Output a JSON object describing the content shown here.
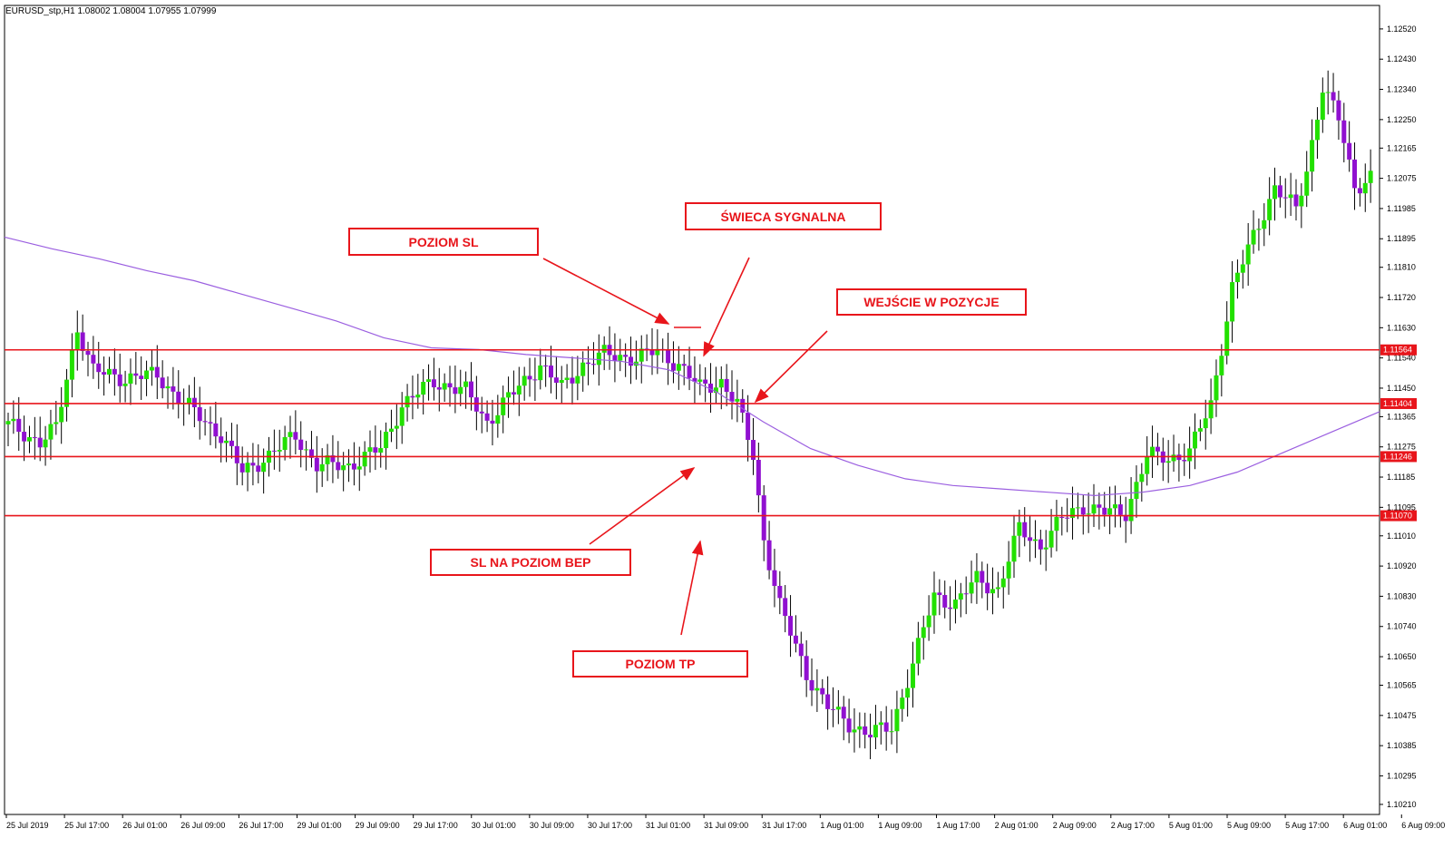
{
  "chart_data": {
    "type": "candlestick",
    "symbol_header": "EURUSD_stp,H1  1.08002 1.08004 1.07955 1.07999",
    "y_ticks": [
      "1.12520",
      "1.12430",
      "1.12340",
      "1.12250",
      "1.12165",
      "1.12075",
      "1.11985",
      "1.11895",
      "1.11810",
      "1.11720",
      "1.11630",
      "1.11540",
      "1.11450",
      "1.11365",
      "1.11275",
      "1.11185",
      "1.11095",
      "1.11010",
      "1.10920",
      "1.10830",
      "1.10740",
      "1.10650",
      "1.10565",
      "1.10475",
      "1.10385",
      "1.10295",
      "1.10210"
    ],
    "ylim": [
      1.1018,
      1.1259
    ],
    "x_ticks": [
      "25 Jul 2019",
      "25 Jul 17:00",
      "26 Jul 01:00",
      "26 Jul 09:00",
      "26 Jul 17:00",
      "29 Jul 01:00",
      "29 Jul 09:00",
      "29 Jul 17:00",
      "30 Jul 01:00",
      "30 Jul 09:00",
      "30 Jul 17:00",
      "31 Jul 01:00",
      "31 Jul 09:00",
      "31 Jul 17:00",
      "1 Aug 01:00",
      "1 Aug 09:00",
      "1 Aug 17:00",
      "2 Aug 01:00",
      "2 Aug 09:00",
      "2 Aug 17:00",
      "5 Aug 01:00",
      "5 Aug 09:00",
      "5 Aug 17:00",
      "6 Aug 01:00",
      "6 Aug 09:00"
    ],
    "levels": [
      {
        "label": "1.11564",
        "value": 1.11564
      },
      {
        "label": "1.11404",
        "value": 1.11404
      },
      {
        "label": "1.11246",
        "value": 1.11246
      },
      {
        "label": "1.11070",
        "value": 1.1107
      }
    ],
    "ma_points": [
      1.119,
      1.11865,
      1.11835,
      1.118,
      1.1177,
      1.1173,
      1.1169,
      1.1165,
      1.116,
      1.1157,
      1.11565,
      1.1155,
      1.1154,
      1.1153,
      1.11505,
      1.1144,
      1.1135,
      1.1127,
      1.1122,
      1.1118,
      1.1116,
      1.1115,
      1.1114,
      1.1113,
      1.1114,
      1.1116,
      1.112,
      1.1126,
      1.1132,
      1.1138
    ],
    "annotations": [
      {
        "label": "POZIOM SL"
      },
      {
        "label": "ŚWIECA SYGNALNA"
      },
      {
        "label": "WEJŚCIE W POZYCJE"
      },
      {
        "label": "SL NA POZIOM BEP"
      },
      {
        "label": "POZIOM TP"
      }
    ],
    "colors": {
      "bull": "#22e000",
      "bear": "#9010d0",
      "level": "#e8151b",
      "ma": "#9b5fe0",
      "axis": "#000000"
    }
  }
}
